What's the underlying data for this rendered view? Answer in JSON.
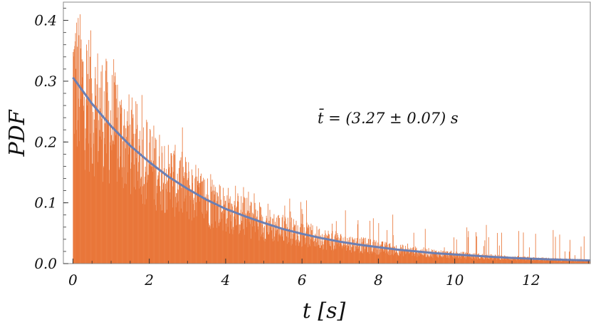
{
  "chart_data": {
    "type": "bar",
    "title": "",
    "xlabel": "t [s]",
    "ylabel": "PDF",
    "xlim": [
      -0.25,
      13.55
    ],
    "ylim": [
      0.0,
      0.43
    ],
    "x_ticks": [
      0,
      2,
      4,
      6,
      8,
      10,
      12
    ],
    "x_tick_labels": [
      "0",
      "2",
      "4",
      "6",
      "8",
      "10",
      "12"
    ],
    "y_ticks": [
      0.0,
      0.1,
      0.2,
      0.3,
      0.4
    ],
    "y_tick_labels": [
      "0.0",
      "0.1",
      "0.2",
      "0.3",
      "0.4"
    ],
    "grid": false,
    "annotation": "t̄ = (3.27 ± 0.07) s",
    "histogram": {
      "color": "#e9773a",
      "bin_width": 0.01,
      "x_start": 0.0,
      "x_end": 13.55,
      "mean_time_s": 3.27
    },
    "series": [
      {
        "type": "line",
        "color": "#6b7fb3",
        "x": [
          0,
          0.5,
          1,
          1.5,
          2,
          2.5,
          3,
          3.5,
          4,
          4.5,
          5,
          5.5,
          6,
          6.5,
          7,
          7.5,
          8,
          8.5,
          9,
          9.5,
          10,
          10.5,
          11,
          11.5,
          12,
          12.5,
          13,
          13.55
        ],
        "y": [
          0.306,
          0.263,
          0.226,
          0.194,
          0.167,
          0.143,
          0.123,
          0.105,
          0.09,
          0.078,
          0.067,
          0.057,
          0.049,
          0.042,
          0.036,
          0.031,
          0.027,
          0.023,
          0.02,
          0.017,
          0.015,
          0.013,
          0.011,
          0.0094,
          0.0081,
          0.0069,
          0.006,
          0.0051
        ]
      }
    ]
  }
}
